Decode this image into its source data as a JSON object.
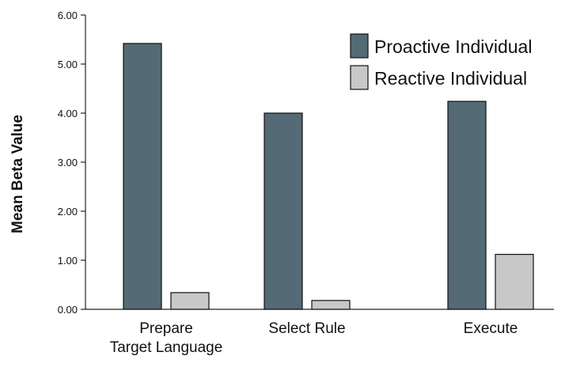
{
  "chart_data": {
    "type": "bar",
    "categories": [
      [
        "Prepare",
        "Target Language"
      ],
      [
        "Select Rule"
      ],
      [
        "Execute"
      ]
    ],
    "series": [
      {
        "name": "Proactive Individual",
        "color": "#546a74",
        "values": [
          5.42,
          4.0,
          4.24
        ]
      },
      {
        "name": "Reactive Individual",
        "color": "#c8c8c8",
        "values": [
          0.34,
          0.18,
          1.12
        ]
      }
    ],
    "ylabel": "Mean Beta Value",
    "xlabel": "",
    "ylim": [
      0,
      6
    ],
    "yticks": [
      "0.00",
      "1.00",
      "2.00",
      "3.00",
      "4.00",
      "5.00",
      "6.00"
    ],
    "grid": false,
    "legend": "top-right"
  }
}
